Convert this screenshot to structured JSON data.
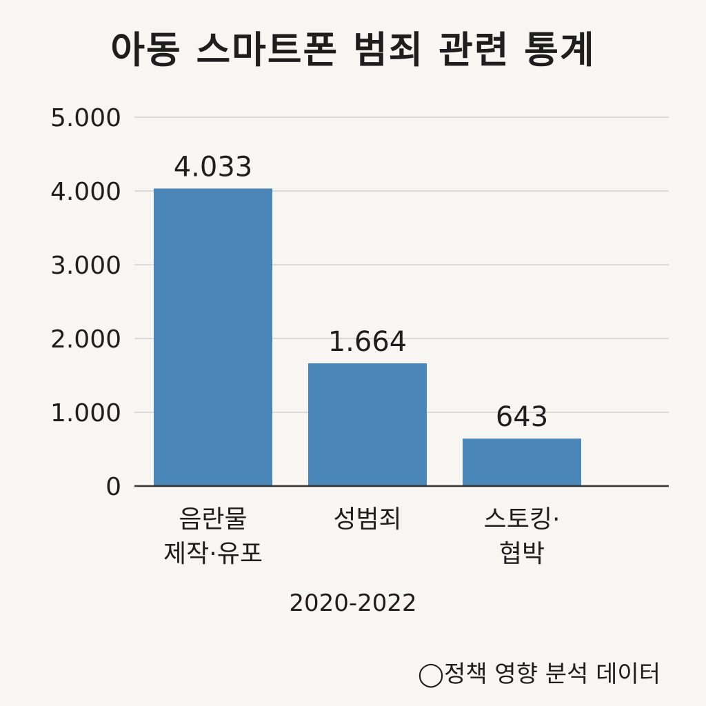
{
  "colors": {
    "background": "#f8f6f2",
    "bar": "#4a86b8",
    "grid": "#dcdad6",
    "axis": "#333333",
    "text": "#1e1e1e"
  },
  "chart_data": {
    "type": "bar",
    "title": "아동 스마트폰 범죄 관련 통계",
    "xlabel": "2020-2022",
    "ylabel": "",
    "categories": [
      [
        "음란물",
        "제작·유포"
      ],
      [
        "성범죄"
      ],
      [
        "스토킹·",
        "협박"
      ]
    ],
    "values": [
      4033,
      1664,
      643
    ],
    "value_labels": [
      "4.033",
      "1.664",
      "643"
    ],
    "ylim": [
      0,
      5000
    ],
    "yticks": [
      0,
      1000,
      2000,
      3000,
      4000,
      5000
    ],
    "ytick_labels": [
      "0",
      "1.000",
      "2.000",
      "3.000",
      "4.000",
      "5.000"
    ],
    "grid": true,
    "legend": "none"
  },
  "source": "◯정책 영향 분석 데이터"
}
